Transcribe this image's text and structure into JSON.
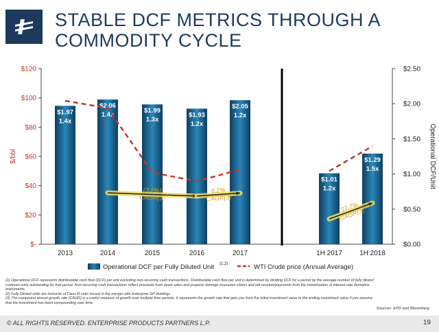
{
  "header": {
    "title_line1": "STABLE DCF METRICS THROUGH A",
    "title_line2": "COMMODITY CYCLE"
  },
  "colors": {
    "brand": "#1b3a5c",
    "bar": "#1a5f8a",
    "crude_line": "#c0392b",
    "cagr_line": "#222222",
    "cagr_highlight": "#f3dd60"
  },
  "chart_data": {
    "type": "bar",
    "categories": [
      "2013",
      "2014",
      "2015",
      "2016",
      "2017",
      "1H 2017",
      "1H 2018"
    ],
    "series": [
      {
        "name": "Operational DCF per Fully Diluted Unit",
        "name_superscript": "(1,2)",
        "axis": "right",
        "values": [
          1.97,
          2.06,
          1.99,
          1.93,
          2.05,
          1.01,
          1.29
        ],
        "value_labels": [
          "$1.97",
          "$2.06",
          "$1.99",
          "$1.93",
          "$2.05",
          "$1.01",
          "$1.29"
        ],
        "coverage_labels": [
          "1.4x",
          "1.4x",
          "1.3x",
          "1.2x",
          "1.2x",
          "1.2x",
          "1.5x"
        ]
      },
      {
        "name": "WTI Crude price (Annual Average)",
        "type": "line",
        "style": "dashed",
        "axis": "left",
        "segments": [
          {
            "categories": [
              "2013",
              "2014",
              "2015",
              "2016",
              "2017"
            ],
            "values": [
              98,
              93,
              49,
              43,
              51
            ]
          },
          {
            "categories": [
              "1H 2017",
              "1H 2018"
            ],
            "values": [
              50,
              67
            ]
          }
        ]
      }
    ],
    "cagr_annotations": [
      {
        "label": "(3.2%)",
        "suffix": "CAGR",
        "superscript": "(3)",
        "from_category": "2014",
        "to_category": "2016"
      },
      {
        "label": "6.2%",
        "suffix": "CAGR",
        "superscript": "(3)",
        "from_category": "2016",
        "to_category": "2017"
      },
      {
        "label": "27.7%",
        "suffix": "CAGR",
        "superscript": "(3)",
        "from_category": "1H 2017",
        "to_category": "1H 2018"
      }
    ],
    "left_axis": {
      "label": "$/bbl",
      "range": [
        0,
        120
      ],
      "ticks": [
        "$-",
        "$20",
        "$40",
        "$60",
        "$80",
        "$100",
        "$120"
      ]
    },
    "right_axis": {
      "label": "Operational DCF/Unit",
      "range": [
        0,
        2.5
      ],
      "ticks": [
        "$0.00",
        "$0.50",
        "$1.00",
        "$1.50",
        "$2.00",
        "$2.50"
      ]
    },
    "legend_position": "bottom",
    "grid": false
  },
  "footnotes": [
    "(1)  Operational DCF represents distributable cash flow (DCF) per unit excluding non-recurring cash transactions. Distributable cash flow per unit is determined by dividing DCF for a period by the average number of fully diluted",
    "       common units outstanding for that period. Non-recurring cash transactions reflect proceeds from asset sales and property damage insurance claims and net receipts/payments from the monetization of interest rate derivative",
    "       instruments.",
    "(2)  Fully Diluted units are inclusive of Class B units issued in the merger with Enterprise GP Holdings",
    "(3)  The compound annual growth rate (CAGR) is a useful measure of growth over multiple time periods. It represents the growth rate that gets you from the initial investment value to the ending investment value if you assume",
    "       that the investment has been compounding over time."
  ],
  "sources": "Sources:  EPD and Bloomberg",
  "footer": {
    "copyright": "© ALL RIGHTS RESERVED. ENTERPRISE PRODUCTS PARTNERS L.P.",
    "page_number": "19"
  }
}
